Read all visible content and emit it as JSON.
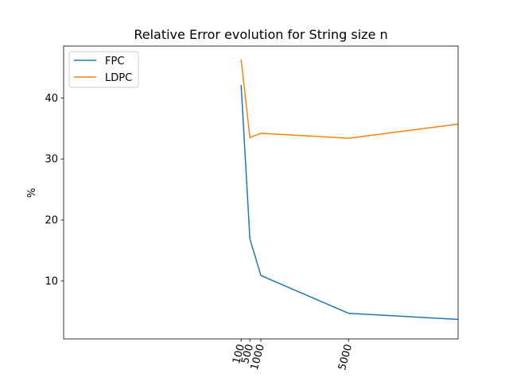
{
  "chart_data": {
    "type": "line",
    "title": "Relative Error evolution for String size n",
    "xlabel": "",
    "ylabel": "%",
    "x": [
      100,
      500,
      1000,
      5000,
      10000
    ],
    "xticks": [
      100,
      500,
      1000,
      5000
    ],
    "xtick_labels": [
      "100",
      "500",
      "1000",
      "5000"
    ],
    "xlim": [
      -8000,
      10000
    ],
    "ylim": [
      0.5,
      48.5
    ],
    "yticks": [
      10,
      20,
      30,
      40
    ],
    "ytick_labels": [
      "10",
      "20",
      "30",
      "40"
    ],
    "grid": false,
    "legend_position": "upper-left",
    "series": [
      {
        "name": "FPC",
        "color": "#1f77b4",
        "values": [
          42.1,
          16.9,
          10.9,
          4.7,
          3.7
        ]
      },
      {
        "name": "LDPC",
        "color": "#ff7f0e",
        "values": [
          46.3,
          33.5,
          34.2,
          33.4,
          35.7
        ]
      }
    ]
  }
}
